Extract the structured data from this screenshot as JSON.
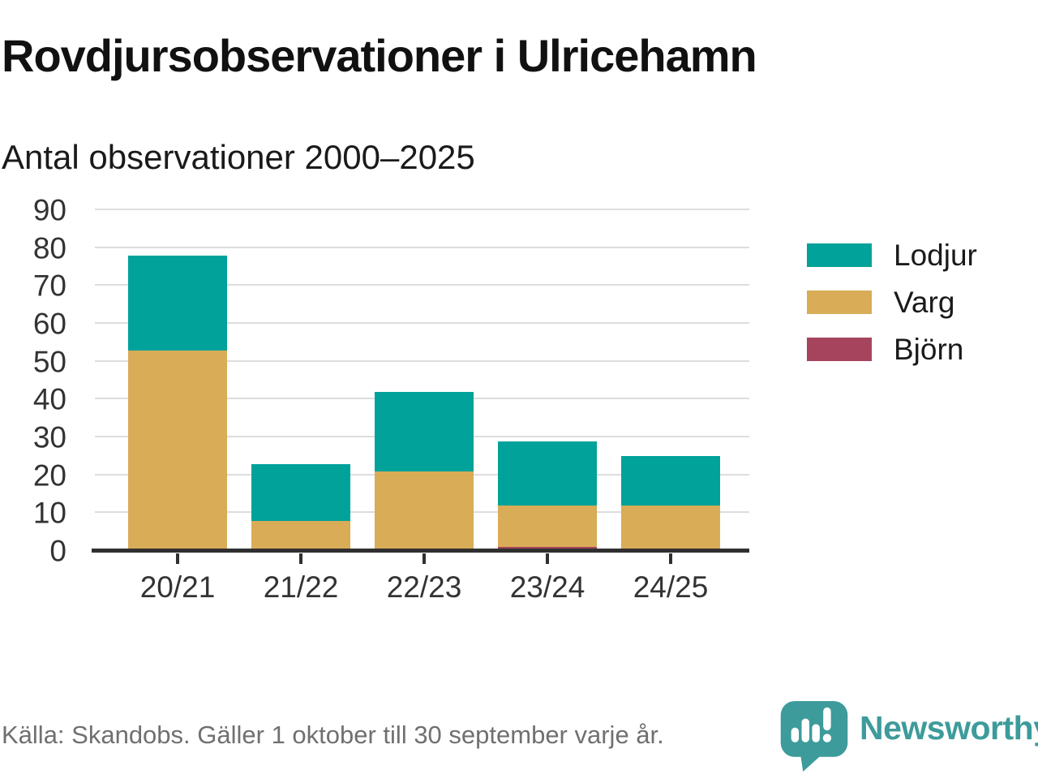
{
  "title": "Rovdjursobservationer i Ulricehamn",
  "subtitle": "Antal observationer 2000–2025",
  "footer": {
    "source": "Källa: Skandobs. Gäller 1 oktober till 30 september varje år.",
    "brand": "Newsworthy"
  },
  "colors": {
    "lodjur": "#00A29A",
    "varg": "#D9AC57",
    "bjorn": "#A6445E",
    "grid": "#DDDDDD",
    "axis": "#303030",
    "text": "#333333",
    "muted": "#707070",
    "brand": "#3D9B9B"
  },
  "icons": {
    "brand_icon": "newsworthy-speech-bubble-barchart-icon"
  },
  "chart_data": {
    "type": "bar",
    "stacked": true,
    "title": "Rovdjursobservationer i Ulricehamn",
    "subtitle": "Antal observationer 2000–2025",
    "categories": [
      "20/21",
      "21/22",
      "22/23",
      "23/24",
      "24/25"
    ],
    "series": [
      {
        "name": "Lodjur",
        "color": "#00A29A",
        "values": [
          25,
          15,
          21,
          17,
          13
        ]
      },
      {
        "name": "Varg",
        "color": "#D9AC57",
        "values": [
          53,
          8,
          21,
          11,
          12
        ]
      },
      {
        "name": "Björn",
        "color": "#A6445E",
        "values": [
          0,
          0,
          0,
          1,
          0
        ]
      }
    ],
    "stack_order_bottom_to_top": [
      "Björn",
      "Varg",
      "Lodjur"
    ],
    "totals": [
      78,
      23,
      42,
      29,
      25
    ],
    "xlabel": "",
    "ylabel": "",
    "ylim": [
      0,
      90
    ],
    "yticks": [
      0,
      10,
      20,
      30,
      40,
      50,
      60,
      70,
      80,
      90
    ],
    "grid": true,
    "legend_position": "right"
  }
}
